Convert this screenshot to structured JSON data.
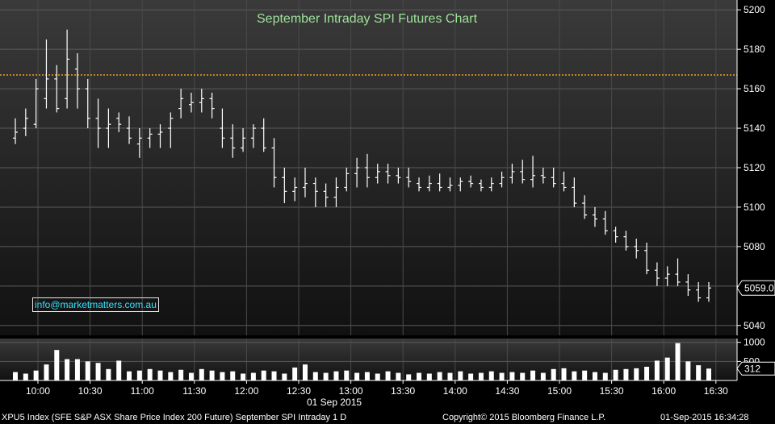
{
  "chart_data": [
    {
      "type": "ohlc",
      "title": "September Intraday SPI Futures Chart",
      "annotation": "info@marketmatters.com.au",
      "ylim": [
        5035,
        5205
      ],
      "yticks": [
        5040,
        5060,
        5080,
        5100,
        5120,
        5140,
        5160,
        5180,
        5200
      ],
      "last_price_label": "5059.0",
      "reference_line": {
        "value": 5167,
        "color": "#f0a020",
        "style": "dotted"
      },
      "grid": true,
      "x_tick_labels": [
        "10:00",
        "10:30",
        "11:00",
        "11:30",
        "12:00",
        "12:30",
        "13:00",
        "13:30",
        "14:00",
        "14:30",
        "15:00",
        "15:30",
        "16:00",
        "16:30"
      ],
      "x_date_label": "01 Sep 2015",
      "bar_interval_minutes": 5,
      "start_time": "09:50",
      "bars": [
        [
          5135,
          5145,
          5132,
          5138
        ],
        [
          5140,
          5150,
          5136,
          5145
        ],
        [
          5142,
          5165,
          5140,
          5160
        ],
        [
          5155,
          5185,
          5150,
          5165
        ],
        [
          5165,
          5172,
          5148,
          5150
        ],
        [
          5155,
          5190,
          5150,
          5175
        ],
        [
          5170,
          5178,
          5150,
          5160
        ],
        [
          5160,
          5165,
          5140,
          5145
        ],
        [
          5145,
          5155,
          5130,
          5140
        ],
        [
          5140,
          5150,
          5130,
          5142
        ],
        [
          5145,
          5148,
          5138,
          5142
        ],
        [
          5140,
          5146,
          5132,
          5135
        ],
        [
          5132,
          5140,
          5125,
          5135
        ],
        [
          5135,
          5140,
          5130,
          5137
        ],
        [
          5137,
          5142,
          5130,
          5138
        ],
        [
          5140,
          5148,
          5130,
          5145
        ],
        [
          5150,
          5160,
          5145,
          5155
        ],
        [
          5152,
          5158,
          5148,
          5153
        ],
        [
          5153,
          5160,
          5148,
          5155
        ],
        [
          5155,
          5158,
          5145,
          5150
        ],
        [
          5140,
          5150,
          5130,
          5135
        ],
        [
          5135,
          5142,
          5125,
          5130
        ],
        [
          5130,
          5140,
          5128,
          5135
        ],
        [
          5135,
          5142,
          5130,
          5140
        ],
        [
          5140,
          5145,
          5128,
          5130
        ],
        [
          5130,
          5135,
          5110,
          5115
        ],
        [
          5115,
          5120,
          5102,
          5108
        ],
        [
          5108,
          5115,
          5103,
          5110
        ],
        [
          5110,
          5120,
          5105,
          5112
        ],
        [
          5112,
          5115,
          5100,
          5108
        ],
        [
          5108,
          5112,
          5100,
          5105
        ],
        [
          5105,
          5115,
          5100,
          5110
        ],
        [
          5110,
          5120,
          5108,
          5117
        ],
        [
          5117,
          5125,
          5110,
          5120
        ],
        [
          5120,
          5127,
          5110,
          5115
        ],
        [
          5115,
          5122,
          5112,
          5118
        ],
        [
          5118,
          5122,
          5112,
          5116
        ],
        [
          5116,
          5120,
          5112,
          5115
        ],
        [
          5115,
          5120,
          5110,
          5113
        ],
        [
          5112,
          5115,
          5108,
          5110
        ],
        [
          5110,
          5116,
          5108,
          5112
        ],
        [
          5112,
          5117,
          5108,
          5110
        ],
        [
          5110,
          5115,
          5108,
          5111
        ],
        [
          5111,
          5115,
          5108,
          5113
        ],
        [
          5113,
          5116,
          5110,
          5112
        ],
        [
          5112,
          5114,
          5108,
          5110
        ],
        [
          5110,
          5115,
          5108,
          5112
        ],
        [
          5112,
          5118,
          5110,
          5115
        ],
        [
          5115,
          5122,
          5112,
          5118
        ],
        [
          5118,
          5124,
          5112,
          5114
        ],
        [
          5114,
          5126,
          5110,
          5116
        ],
        [
          5116,
          5120,
          5112,
          5115
        ],
        [
          5115,
          5120,
          5110,
          5112
        ],
        [
          5112,
          5118,
          5108,
          5110
        ],
        [
          5110,
          5115,
          5100,
          5102
        ],
        [
          5102,
          5106,
          5094,
          5096
        ],
        [
          5096,
          5100,
          5090,
          5094
        ],
        [
          5094,
          5098,
          5086,
          5088
        ],
        [
          5088,
          5090,
          5082,
          5085
        ],
        [
          5085,
          5088,
          5078,
          5080
        ],
        [
          5080,
          5084,
          5074,
          5078
        ],
        [
          5078,
          5082,
          5066,
          5068
        ],
        [
          5068,
          5072,
          5060,
          5064
        ],
        [
          5064,
          5070,
          5060,
          5066
        ],
        [
          5066,
          5074,
          5060,
          5062
        ],
        [
          5062,
          5066,
          5055,
          5058
        ],
        [
          5058,
          5062,
          5052,
          5054
        ],
        [
          5054,
          5062,
          5052,
          5059
        ]
      ]
    },
    {
      "type": "bar",
      "name": "Volume",
      "ylim": [
        0,
        1100
      ],
      "yticks": [
        500,
        1000
      ],
      "last_value_label": "312",
      "values": [
        220,
        180,
        260,
        420,
        800,
        560,
        560,
        500,
        460,
        300,
        520,
        240,
        260,
        300,
        260,
        220,
        280,
        200,
        300,
        260,
        220,
        240,
        180,
        200,
        260,
        240,
        180,
        340,
        420,
        220,
        200,
        240,
        260,
        200,
        220,
        180,
        240,
        200,
        160,
        200,
        180,
        220,
        200,
        240,
        180,
        200,
        240,
        200,
        220,
        200,
        260,
        200,
        300,
        320,
        240,
        260,
        220,
        200,
        280,
        300,
        320,
        360,
        520,
        600,
        980,
        500,
        400,
        312
      ]
    }
  ],
  "footer": {
    "left": "XPU5 Index (SFE S&P ASX Share Price Index 200 Future) September SPI Intraday 1 D",
    "center": "Copyright© 2015 Bloomberg Finance L.P.",
    "right": "01-Sep-2015 16:34:28"
  },
  "colors": {
    "background": "#000000",
    "plot_gradient_top": "#3a3a3a",
    "plot_gradient_bottom": "#111111",
    "bars": "#ffffff",
    "title": "#9fe29a",
    "email": "#33e0ff",
    "reference_line": "#f0a020"
  }
}
